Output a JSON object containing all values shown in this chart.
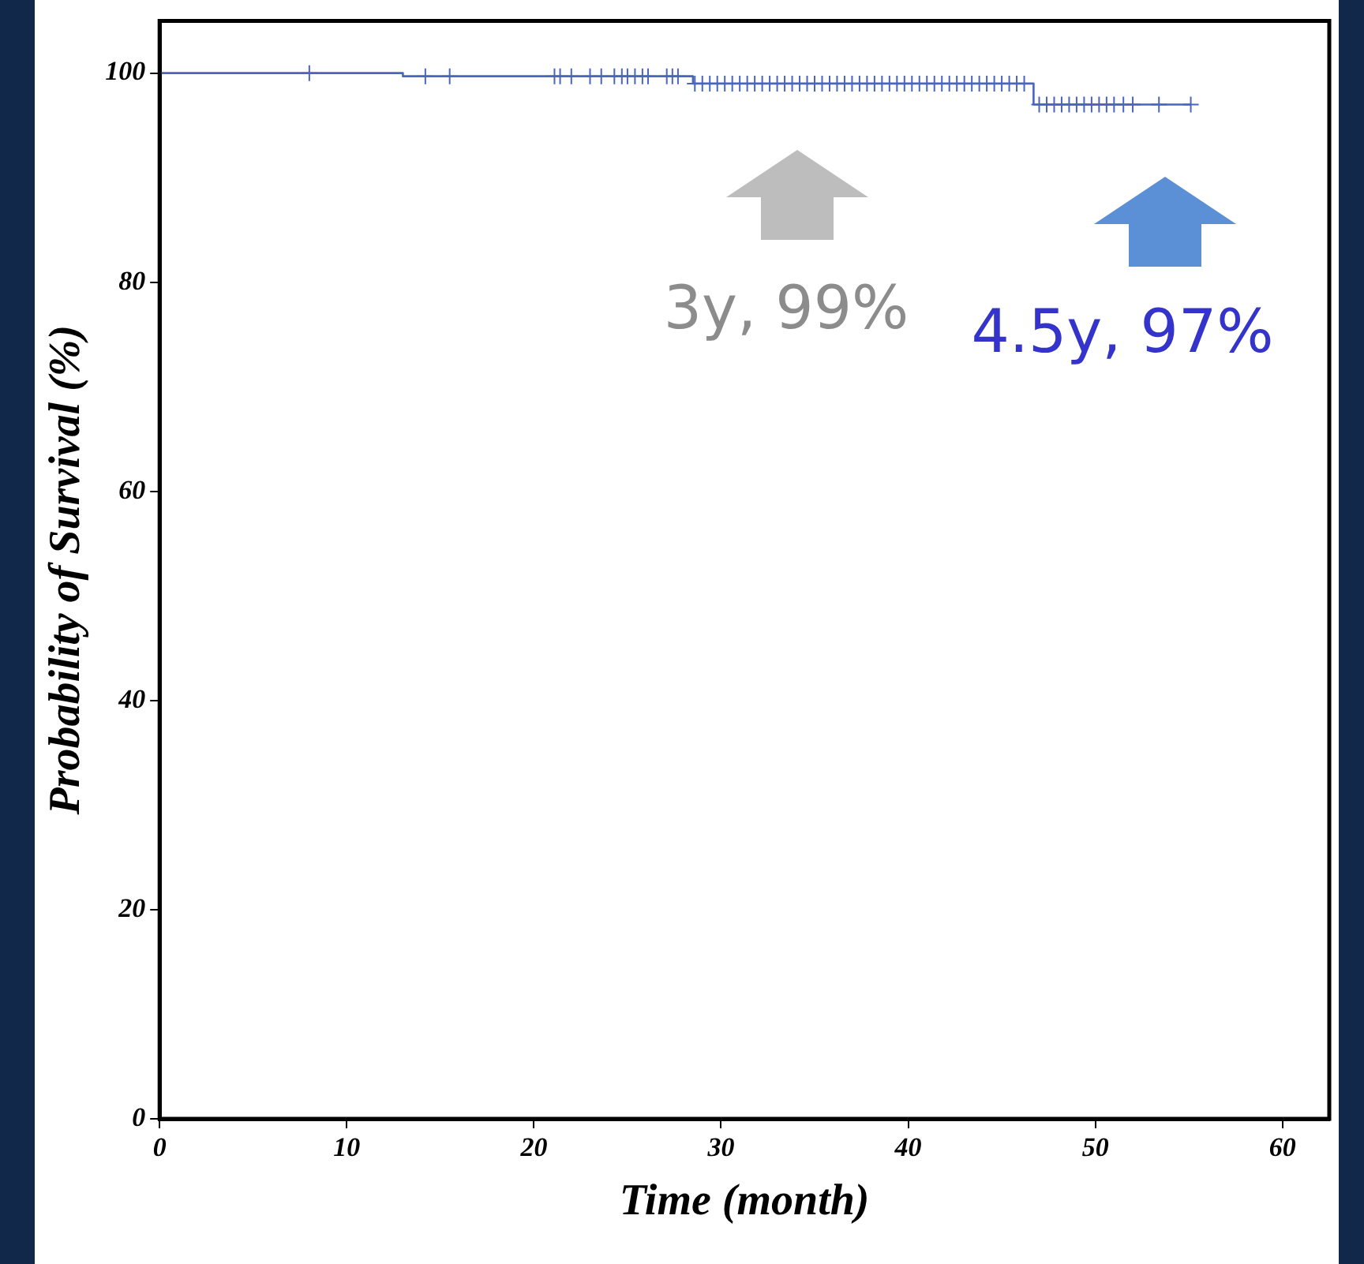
{
  "chart_data": {
    "type": "step",
    "xlabel": "Time (month)",
    "ylabel": "Probability of Survival (%)",
    "xlim": [
      0,
      62.5
    ],
    "xticks": [
      0,
      10,
      20,
      30,
      40,
      50,
      60
    ],
    "ylim": [
      0,
      105
    ],
    "yticks": [
      0,
      20,
      40,
      60,
      80,
      100
    ],
    "grid": false,
    "legend": false,
    "series": [
      {
        "color": "#4a64c0",
        "x": [
          0,
          13,
          28.5,
          46.7,
          55.1
        ],
        "values": [
          100,
          99.7,
          99,
          97,
          97
        ]
      },
      {
        "type": "scatter",
        "color": "#4a64c0",
        "marker": "cross",
        "x": [
          8,
          14.2,
          15.5,
          21.1,
          21.4,
          22.0,
          23.0,
          23.6,
          24.3,
          24.7,
          25.0,
          25.4,
          25.8,
          26.1,
          27.1,
          27.4,
          27.7,
          28.6,
          29.0,
          29.4,
          29.8,
          30.2,
          30.6,
          31.0,
          31.4,
          31.8,
          32.2,
          32.6,
          33.0,
          33.4,
          33.8,
          34.2,
          34.6,
          35.0,
          35.4,
          35.8,
          36.2,
          36.6,
          37.0,
          37.4,
          37.8,
          38.2,
          38.6,
          39.0,
          39.4,
          39.8,
          40.2,
          40.6,
          41.0,
          41.4,
          41.8,
          42.2,
          42.6,
          43.0,
          43.4,
          43.8,
          44.2,
          44.6,
          45.0,
          45.4,
          45.8,
          46.2,
          47.0,
          47.4,
          47.8,
          48.2,
          48.6,
          49.0,
          49.4,
          49.8,
          50.2,
          50.6,
          51.0,
          51.5,
          52.0,
          53.4,
          55.1
        ],
        "values": [
          100,
          99.7,
          99.7,
          99.7,
          99.7,
          99.7,
          99.7,
          99.7,
          99.7,
          99.7,
          99.7,
          99.7,
          99.7,
          99.7,
          99.7,
          99.7,
          99.7,
          99,
          99,
          99,
          99,
          99,
          99,
          99,
          99,
          99,
          99,
          99,
          99,
          99,
          99,
          99,
          99,
          99,
          99,
          99,
          99,
          99,
          99,
          99,
          99,
          99,
          99,
          99,
          99,
          99,
          99,
          99,
          99,
          99,
          99,
          99,
          99,
          99,
          99,
          99,
          99,
          99,
          99,
          99,
          99,
          99,
          97,
          97,
          97,
          97,
          97,
          97,
          97,
          97,
          97,
          97,
          97,
          97,
          97,
          97,
          97
        ]
      }
    ],
    "annotations": [
      "3y, 99%",
      "4.5y, 97%"
    ]
  }
}
